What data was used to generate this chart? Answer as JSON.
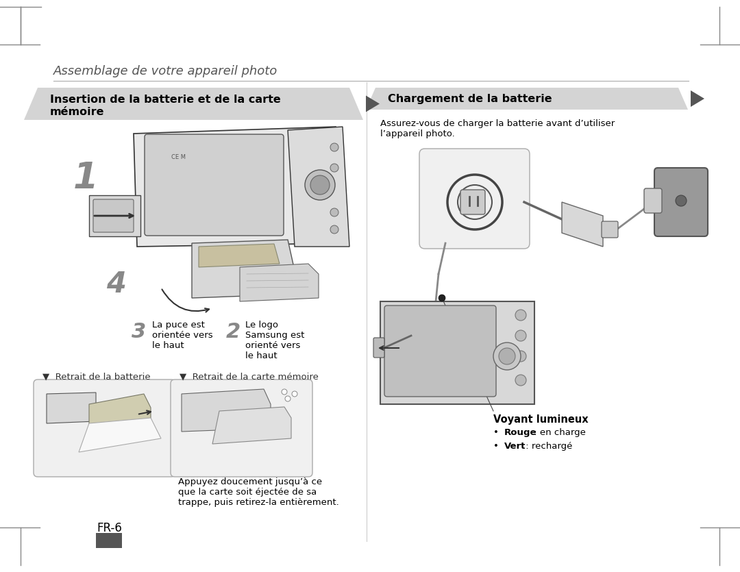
{
  "bg_color": "#ffffff",
  "page_title": "Assemblage de votre appareil photo",
  "section1_title_line1": "Insertion de la batterie et de la carte",
  "section1_title_line2": "mémoire",
  "section2_title": "Chargement de la batterie",
  "section_bg": "#d4d4d4",
  "section_text_color": "#000000",
  "label1": "1",
  "label2": "2",
  "label3": "3",
  "label4": "4",
  "label2_text": "Le logo\nSamsung est\norienté vers\nle haut",
  "label3_text": "La puce est\norientée vers\nle haut",
  "retrait_batterie": "▼  Retrait de la batterie",
  "retrait_carte": "▼  Retrait de la carte mémoire",
  "appuyez_text": "Appuyez doucement jusqu’à ce\nque la carte soit éjectée de sa\ntrappe, puis retirez-la entièrement.",
  "charge_text": "Assurez-vous de charger la batterie avant d’utiliser\nl’appareil photo.",
  "voyant_title": "Voyant lumineux",
  "voyant_rouge_bold": "Rouge",
  "voyant_rouge_rest": " : en charge",
  "voyant_vert_bold": "Vert",
  "voyant_vert_rest": " : rechargé",
  "page_num": "FR-6",
  "title_color": "#555555",
  "arrow_fill": "#555555",
  "gray_bar": "#555555"
}
